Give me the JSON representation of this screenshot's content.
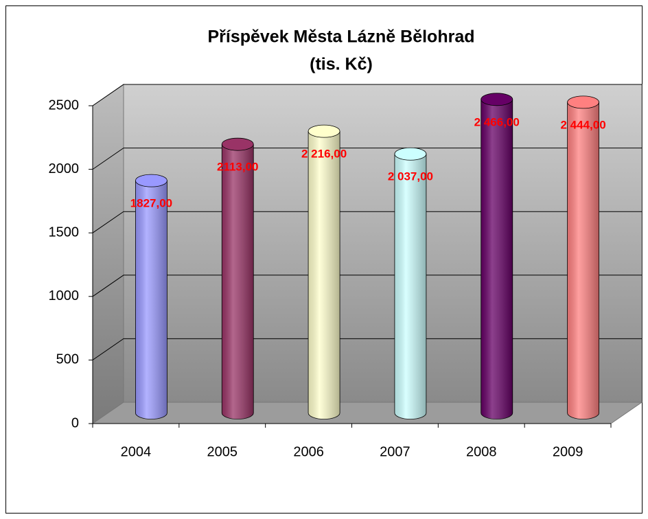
{
  "chart_data": {
    "type": "bar3d",
    "title": "Příspěvek Města Lázně Bělohrad",
    "subtitle": "(tis. Kč)",
    "categories": [
      "2004",
      "2005",
      "2006",
      "2007",
      "2008",
      "2009"
    ],
    "values": [
      1827,
      2113,
      2216,
      2037,
      2466,
      2444
    ],
    "value_labels": [
      "1827,00",
      "2113,00",
      "2 216,00",
      "2 037,00",
      "2 466,00",
      "2 444,00"
    ],
    "colors": [
      "#9999ff",
      "#993366",
      "#ffffcc",
      "#ccffff",
      "#660066",
      "#ff8080"
    ],
    "ylim": [
      0,
      2500
    ],
    "yticks": [
      0,
      500,
      1000,
      1500,
      2000,
      2500
    ],
    "grid": true
  }
}
